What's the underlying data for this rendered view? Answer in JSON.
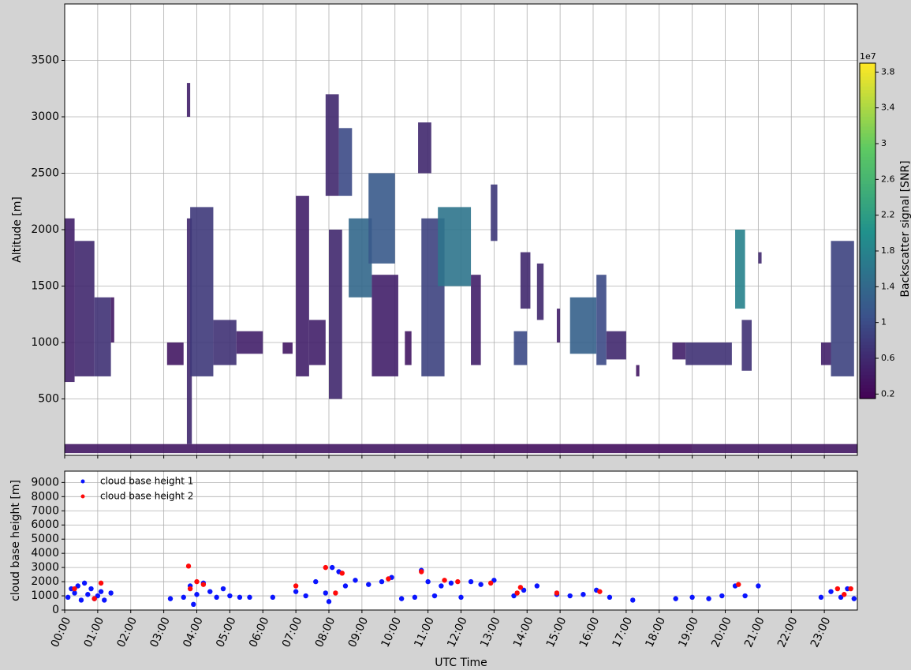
{
  "chart_data": [
    {
      "type": "heatmap",
      "ylabel": "Altitude [m]",
      "colormap": "viridis",
      "colorbar_label": "Backscatter signal [SNR]",
      "colorbar_offset": "1e7",
      "xlim": [
        0,
        24
      ],
      "xticks": [
        0,
        1,
        2,
        3,
        4,
        5,
        6,
        7,
        8,
        9,
        10,
        11,
        12,
        13,
        14,
        15,
        16,
        17,
        18,
        19,
        20,
        21,
        22,
        23
      ],
      "ylim": [
        0,
        4000
      ],
      "yticks": [
        500,
        1000,
        1500,
        2000,
        2500,
        3000,
        3500
      ],
      "grid": true,
      "clim": [
        0.15,
        3.9
      ],
      "cticks": [
        0.2,
        0.6,
        1.0,
        1.4,
        1.8,
        2.2,
        2.6,
        3.0,
        3.4,
        3.8
      ],
      "patches": {
        "x0": [
          0.0,
          0.3,
          0.9,
          1.4,
          3.1,
          3.7,
          3.8,
          3.7,
          4.5,
          5.2,
          6.6,
          7.0,
          7.4,
          7.9,
          8.0,
          8.3,
          8.6,
          9.2,
          9.3,
          10.3,
          10.7,
          10.8,
          11.3,
          12.3,
          12.9,
          13.6,
          13.8,
          14.3,
          14.9,
          15.3,
          16.1,
          16.4,
          17.3,
          18.4,
          18.8,
          20.3,
          20.5,
          21.0,
          22.9,
          23.2,
          0.0,
          12.0,
          19.0
        ],
        "x1": [
          0.3,
          0.9,
          1.4,
          1.5,
          3.6,
          3.85,
          4.5,
          3.8,
          5.2,
          6.0,
          6.9,
          7.4,
          7.9,
          8.3,
          8.4,
          8.7,
          9.3,
          10.0,
          10.1,
          10.5,
          11.1,
          11.5,
          12.3,
          12.6,
          13.1,
          14.0,
          14.1,
          14.5,
          15.0,
          16.1,
          16.4,
          17.0,
          17.4,
          18.8,
          20.2,
          20.6,
          20.8,
          21.1,
          23.2,
          23.9,
          12.0,
          19.0,
          24.0
        ],
        "y0": [
          650,
          700,
          700,
          1000,
          800,
          100,
          700,
          3000,
          800,
          900,
          900,
          700,
          800,
          2300,
          500,
          2300,
          1400,
          1700,
          700,
          800,
          2500,
          700,
          1500,
          800,
          1900,
          800,
          1300,
          1200,
          1000,
          900,
          800,
          850,
          700,
          850,
          800,
          1300,
          750,
          1700,
          800,
          700,
          20,
          20,
          20
        ],
        "y1": [
          2100,
          1900,
          1400,
          1400,
          1000,
          2100,
          2200,
          3300,
          1200,
          1100,
          1000,
          2300,
          1200,
          3200,
          2000,
          2900,
          2100,
          2500,
          1600,
          1100,
          2950,
          2100,
          2200,
          1600,
          2400,
          1100,
          1800,
          1700,
          1300,
          1400,
          1600,
          1100,
          800,
          1000,
          1000,
          2000,
          1200,
          1800,
          1000,
          1900,
          100,
          100,
          100
        ],
        "values": [
          0.5,
          0.6,
          0.7,
          0.4,
          0.4,
          0.6,
          0.8,
          0.5,
          0.7,
          0.5,
          0.4,
          0.5,
          0.5,
          0.6,
          0.6,
          1.0,
          1.4,
          1.2,
          0.5,
          0.4,
          0.6,
          0.9,
          1.6,
          0.5,
          0.8,
          1.0,
          0.6,
          0.6,
          0.5,
          1.3,
          1.0,
          0.6,
          0.4,
          0.5,
          0.7,
          1.8,
          0.7,
          0.6,
          0.5,
          0.9,
          0.4,
          0.3,
          0.4
        ]
      }
    },
    {
      "type": "scatter",
      "xlabel": "UTC Time",
      "ylabel": "cloud base height [m]",
      "legend": "upper left",
      "grid": true,
      "xlim": [
        0,
        24
      ],
      "xticks": [
        {
          "value": 0,
          "label": "00:00"
        },
        {
          "value": 1,
          "label": "01:00"
        },
        {
          "value": 2,
          "label": "02:00"
        },
        {
          "value": 3,
          "label": "03:00"
        },
        {
          "value": 4,
          "label": "04:00"
        },
        {
          "value": 5,
          "label": "05:00"
        },
        {
          "value": 6,
          "label": "06:00"
        },
        {
          "value": 7,
          "label": "07:00"
        },
        {
          "value": 8,
          "label": "08:00"
        },
        {
          "value": 9,
          "label": "09:00"
        },
        {
          "value": 10,
          "label": "10:00"
        },
        {
          "value": 11,
          "label": "11:00"
        },
        {
          "value": 12,
          "label": "12:00"
        },
        {
          "value": 13,
          "label": "13:00"
        },
        {
          "value": 14,
          "label": "14:00"
        },
        {
          "value": 15,
          "label": "15:00"
        },
        {
          "value": 16,
          "label": "16:00"
        },
        {
          "value": 17,
          "label": "17:00"
        },
        {
          "value": 18,
          "label": "18:00"
        },
        {
          "value": 19,
          "label": "19:00"
        },
        {
          "value": 20,
          "label": "20:00"
        },
        {
          "value": 21,
          "label": "21:00"
        },
        {
          "value": 22,
          "label": "22:00"
        },
        {
          "value": 23,
          "label": "23:00"
        }
      ],
      "ylim": [
        0,
        9800
      ],
      "yticks": [
        0,
        1000,
        2000,
        3000,
        4000,
        5000,
        6000,
        7000,
        8000,
        9000
      ],
      "series": [
        {
          "name": "cloud base height 1",
          "color": "#0a14ff",
          "x": [
            0.1,
            0.2,
            0.3,
            0.4,
            0.5,
            0.6,
            0.7,
            0.8,
            0.9,
            1.0,
            1.1,
            1.2,
            1.4,
            3.2,
            3.6,
            3.8,
            3.9,
            4.0,
            4.2,
            4.4,
            4.6,
            4.8,
            5.0,
            5.3,
            5.6,
            6.3,
            7.0,
            7.3,
            7.6,
            7.9,
            8.0,
            8.1,
            8.3,
            8.5,
            8.8,
            9.2,
            9.6,
            9.9,
            10.2,
            10.6,
            10.8,
            11.0,
            11.2,
            11.4,
            11.7,
            12.0,
            12.3,
            12.6,
            13.0,
            13.6,
            13.9,
            14.3,
            14.9,
            15.3,
            15.7,
            16.1,
            16.5,
            17.2,
            18.5,
            19.0,
            19.5,
            19.9,
            20.3,
            20.6,
            21.0,
            22.9,
            23.2,
            23.5,
            23.7,
            23.9
          ],
          "values": [
            900,
            1500,
            1200,
            1700,
            700,
            1900,
            1100,
            1500,
            800,
            1000,
            1300,
            700,
            1200,
            800,
            900,
            1700,
            400,
            1100,
            1900,
            1300,
            900,
            1500,
            1000,
            900,
            900,
            900,
            1300,
            1000,
            2000,
            1200,
            600,
            3000,
            2700,
            1700,
            2100,
            1800,
            2000,
            2300,
            800,
            900,
            2800,
            2000,
            1000,
            1700,
            1900,
            900,
            2000,
            1800,
            2100,
            1000,
            1400,
            1700,
            1100,
            1000,
            1100,
            1400,
            900,
            700,
            800,
            900,
            800,
            1000,
            1700,
            1000,
            1700,
            900,
            1300,
            900,
            1500,
            800
          ]
        },
        {
          "name": "cloud base height 2",
          "color": "#ff0a0a",
          "x": [
            0.3,
            0.9,
            1.1,
            3.75,
            3.8,
            4.0,
            4.2,
            7.0,
            7.9,
            8.2,
            8.4,
            9.8,
            10.8,
            11.5,
            11.9,
            12.9,
            13.7,
            13.8,
            14.9,
            16.2,
            20.4,
            23.4,
            23.6,
            23.8
          ],
          "values": [
            1500,
            800,
            1900,
            3100,
            1500,
            2000,
            1800,
            1700,
            3000,
            1200,
            2600,
            2200,
            2700,
            2100,
            2000,
            1900,
            1200,
            1600,
            1200,
            1300,
            1800,
            1500,
            1100,
            1500
          ]
        }
      ]
    }
  ]
}
